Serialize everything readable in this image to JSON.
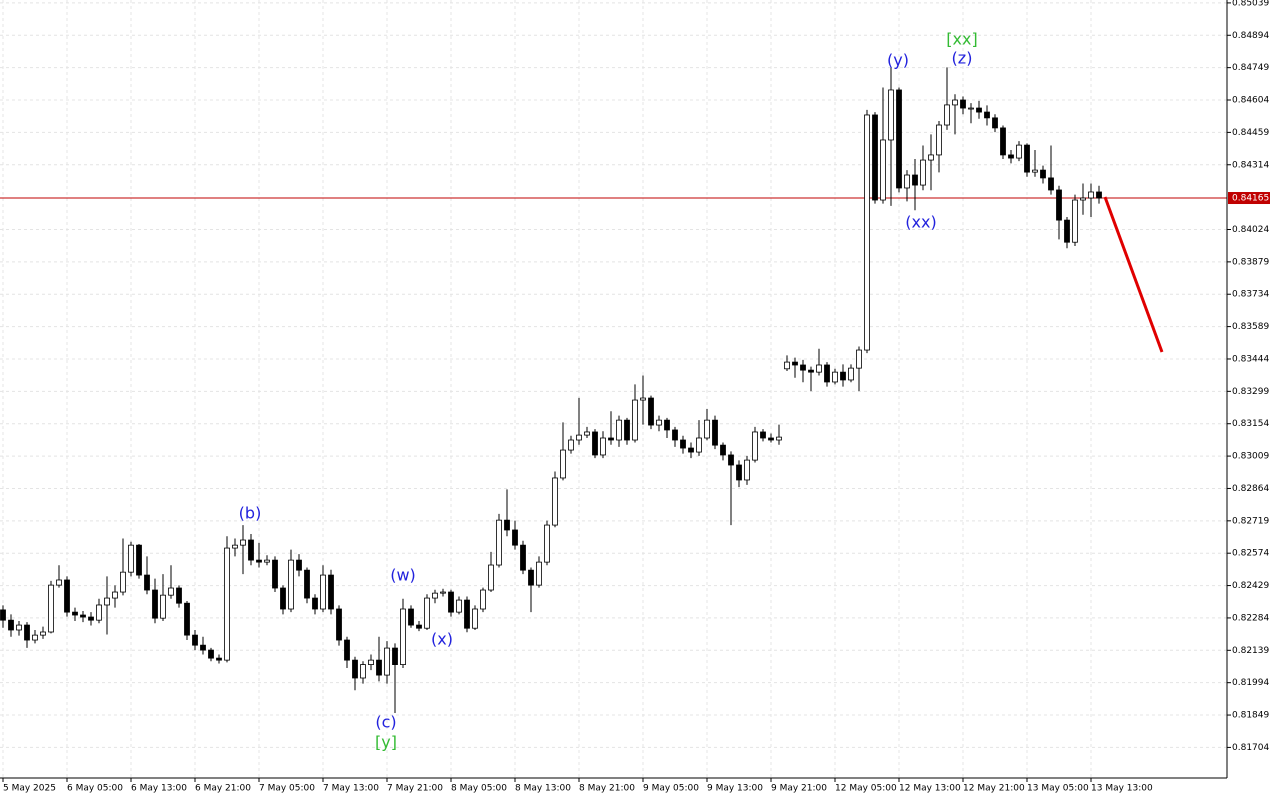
{
  "chart_data": {
    "type": "candlestick",
    "open": [
      0.8232,
      0.82274,
      0.8223,
      0.82252,
      0.82185,
      0.82207,
      0.82221,
      0.82431,
      0.82454,
      0.8231,
      0.82297,
      0.82288,
      0.82274,
      0.82342,
      0.82373,
      0.824,
      0.82489,
      0.8261,
      0.82476,
      0.82409,
      0.82283,
      0.82386,
      0.82418,
      0.8235,
      0.82207,
      0.82162,
      0.8214,
      0.82104,
      0.82095,
      0.82597,
      0.8261,
      0.82633,
      0.82543,
      0.82534,
      0.82543,
      0.82418,
      0.82324,
      0.82543,
      0.82498,
      0.82373,
      0.82324,
      0.82476,
      0.82324,
      0.82185,
      0.82095,
      0.82015,
      0.82075,
      0.82095,
      0.82028,
      0.82149,
      0.82075,
      0.82324,
      0.82252,
      0.82238,
      0.82373,
      0.82395,
      0.824,
      0.8231,
      0.82364,
      0.82238,
      0.82324,
      0.82409,
      0.82521,
      0.82722,
      0.82678,
      0.8261,
      0.82498,
      0.82431,
      0.82534,
      0.827,
      0.82911,
      0.83036,
      0.83081,
      0.83103,
      0.83117,
      0.83014,
      0.8309,
      0.83081,
      0.8317,
      0.83081,
      0.8326,
      0.83269,
      0.83148,
      0.8317,
      0.83126,
      0.83081,
      0.83045,
      0.83027,
      0.8309,
      0.8317,
      0.83058,
      0.83014,
      0.82969,
      0.82902,
      0.82991,
      0.83117,
      0.8309,
      0.83081,
      0.834,
      0.8343,
      0.83417,
      0.83394,
      0.83385,
      0.83417,
      0.83341,
      0.83385,
      0.8335,
      0.83403,
      0.83484,
      0.84537,
      0.84156,
      0.84425,
      0.84649,
      0.8421,
      0.84268,
      0.84223,
      0.84335,
      0.84358,
      0.84492,
      0.84582,
      0.84604,
      0.84568,
      0.84568,
      0.8455,
      0.84524,
      0.84479,
      0.84358,
      0.84344,
      0.84402,
      0.84281,
      0.8429,
      0.84255,
      0.84201,
      0.84066,
      0.83967,
      0.84156,
      0.84165,
      0.84192
    ],
    "high": [
      0.8234,
      0.823,
      0.8227,
      0.82265,
      0.8223,
      0.82245,
      0.8245,
      0.8252,
      0.8247,
      0.8233,
      0.82315,
      0.8231,
      0.8237,
      0.8247,
      0.8243,
      0.8264,
      0.82625,
      0.82615,
      0.8256,
      0.8246,
      0.8248,
      0.8252,
      0.8243,
      0.8236,
      0.8223,
      0.822,
      0.8215,
      0.8212,
      0.8265,
      0.8264,
      0.827,
      0.8266,
      0.8262,
      0.82565,
      0.8256,
      0.8243,
      0.8259,
      0.8257,
      0.8251,
      0.8239,
      0.8252,
      0.825,
      0.8234,
      0.822,
      0.8211,
      0.8209,
      0.8212,
      0.822,
      0.8218,
      0.8217,
      0.8237,
      0.8234,
      0.8227,
      0.8239,
      0.8241,
      0.82415,
      0.8241,
      0.8238,
      0.8238,
      0.8234,
      0.8242,
      0.8258,
      0.8275,
      0.8286,
      0.8272,
      0.8263,
      0.8251,
      0.8256,
      0.8272,
      0.8294,
      0.8316,
      0.831,
      0.8327,
      0.8314,
      0.8313,
      0.8312,
      0.8321,
      0.8319,
      0.8318,
      0.8333,
      0.8337,
      0.8328,
      0.8319,
      0.8318,
      0.8314,
      0.831,
      0.8307,
      0.8317,
      0.8322,
      0.8319,
      0.8307,
      0.8303,
      0.8299,
      0.8301,
      0.8314,
      0.8313,
      0.8311,
      0.8315,
      0.8346,
      0.8345,
      0.8344,
      0.8341,
      0.8349,
      0.8343,
      0.834,
      0.8342,
      0.8342,
      0.835,
      0.8456,
      0.8455,
      0.8466,
      0.8475,
      0.8466,
      0.8429,
      0.8434,
      0.844,
      0.8445,
      0.8451,
      0.8475,
      0.8463,
      0.8462,
      0.8459,
      0.846,
      0.8458,
      0.8454,
      0.8449,
      0.8438,
      0.8442,
      0.8441,
      0.8438,
      0.8431,
      0.844,
      0.8422,
      0.8408,
      0.8418,
      0.8423,
      0.8423,
      0.8422
    ],
    "low": [
      0.8224,
      0.822,
      0.82205,
      0.8215,
      0.8217,
      0.8219,
      0.82215,
      0.8242,
      0.8229,
      0.8227,
      0.82265,
      0.8225,
      0.8226,
      0.8221,
      0.8233,
      0.82385,
      0.8247,
      0.8246,
      0.8239,
      0.8226,
      0.8227,
      0.8237,
      0.8233,
      0.82185,
      0.8214,
      0.8212,
      0.8209,
      0.8208,
      0.82085,
      0.8256,
      0.8248,
      0.8252,
      0.8251,
      0.8252,
      0.824,
      0.823,
      0.8231,
      0.8247,
      0.8235,
      0.823,
      0.8231,
      0.823,
      0.8216,
      0.8206,
      0.8196,
      0.8199,
      0.8205,
      0.82,
      0.8199,
      0.81858,
      0.8206,
      0.8224,
      0.82225,
      0.8223,
      0.8235,
      0.8238,
      0.8229,
      0.823,
      0.8222,
      0.8223,
      0.8231,
      0.824,
      0.8251,
      0.8265,
      0.8259,
      0.8248,
      0.8231,
      0.8242,
      0.8252,
      0.8269,
      0.829,
      0.8302,
      0.8306,
      0.8309,
      0.83,
      0.83,
      0.8306,
      0.8305,
      0.8306,
      0.8307,
      0.8315,
      0.8313,
      0.8312,
      0.8309,
      0.8305,
      0.8302,
      0.83,
      0.8301,
      0.8308,
      0.8304,
      0.8299,
      0.827,
      0.8287,
      0.8288,
      0.8298,
      0.83075,
      0.8307,
      0.8306,
      0.8339,
      0.8336,
      0.8334,
      0.833,
      0.8337,
      0.8332,
      0.8333,
      0.8332,
      0.8334,
      0.833,
      0.8347,
      0.8414,
      0.8414,
      0.8413,
      0.8419,
      0.8415,
      0.8411,
      0.842,
      0.842,
      0.8428,
      0.8447,
      0.8445,
      0.8454,
      0.845,
      0.8452,
      0.8449,
      0.8446,
      0.8434,
      0.8432,
      0.8433,
      0.8426,
      0.8426,
      0.8423,
      0.8418,
      0.8398,
      0.8394,
      0.8395,
      0.8409,
      0.8408,
      0.8414
    ],
    "close": [
      0.82274,
      0.8223,
      0.82252,
      0.82185,
      0.82207,
      0.82221,
      0.82431,
      0.82454,
      0.8231,
      0.82297,
      0.82288,
      0.82274,
      0.82342,
      0.82373,
      0.824,
      0.82489,
      0.8261,
      0.82476,
      0.82409,
      0.82283,
      0.82386,
      0.82418,
      0.8235,
      0.82207,
      0.82162,
      0.8214,
      0.82104,
      0.82095,
      0.82597,
      0.8261,
      0.82633,
      0.82543,
      0.82534,
      0.82543,
      0.82418,
      0.82324,
      0.82543,
      0.82498,
      0.82373,
      0.82324,
      0.82476,
      0.82324,
      0.82185,
      0.82095,
      0.82015,
      0.82075,
      0.82095,
      0.82028,
      0.82149,
      0.82075,
      0.82324,
      0.82252,
      0.82238,
      0.82373,
      0.82395,
      0.824,
      0.8231,
      0.82364,
      0.82238,
      0.82324,
      0.82409,
      0.82521,
      0.82722,
      0.82678,
      0.8261,
      0.82498,
      0.82431,
      0.82534,
      0.827,
      0.82911,
      0.83036,
      0.83081,
      0.83103,
      0.83117,
      0.83014,
      0.8309,
      0.83081,
      0.8317,
      0.83081,
      0.8326,
      0.83269,
      0.83148,
      0.8317,
      0.83126,
      0.83081,
      0.83045,
      0.83027,
      0.8309,
      0.8317,
      0.83058,
      0.83014,
      0.82969,
      0.82902,
      0.82991,
      0.83117,
      0.8309,
      0.83081,
      0.83094,
      0.8343,
      0.83417,
      0.83394,
      0.83385,
      0.83417,
      0.83341,
      0.83385,
      0.8335,
      0.83403,
      0.83484,
      0.84537,
      0.84156,
      0.84425,
      0.84649,
      0.8421,
      0.84268,
      0.84223,
      0.84335,
      0.84358,
      0.84492,
      0.84582,
      0.84604,
      0.84568,
      0.84568,
      0.8455,
      0.84524,
      0.84479,
      0.84358,
      0.84344,
      0.84402,
      0.84281,
      0.8429,
      0.84255,
      0.84201,
      0.84066,
      0.83967,
      0.84156,
      0.84165,
      0.84192,
      0.84165
    ],
    "up_color": "#ffffff",
    "down_color": "#000000",
    "ylim": [
      0.81567,
      0.85052
    ],
    "yticks": [
      0.85039,
      0.84894,
      0.84749,
      0.84604,
      0.84459,
      0.84314,
      0.84024,
      0.83879,
      0.83734,
      0.83589,
      0.83444,
      0.83299,
      0.83154,
      0.83009,
      0.82864,
      0.82719,
      0.82574,
      0.82429,
      0.82284,
      0.82139,
      0.81994,
      0.81849,
      0.81704
    ],
    "xticks": [
      {
        "value": 0,
        "label": "5 May 2025"
      },
      {
        "value": 8,
        "label": "6 May 05:00"
      },
      {
        "value": 16,
        "label": "6 May 13:00"
      },
      {
        "value": 24,
        "label": "6 May 21:00"
      },
      {
        "value": 32,
        "label": "7 May 05:00"
      },
      {
        "value": 40,
        "label": "7 May 13:00"
      },
      {
        "value": 48,
        "label": "7 May 21:00"
      },
      {
        "value": 56,
        "label": "8 May 05:00"
      },
      {
        "value": 64,
        "label": "8 May 13:00"
      },
      {
        "value": 72,
        "label": "8 May 21:00"
      },
      {
        "value": 80,
        "label": "9 May 05:00"
      },
      {
        "value": 88,
        "label": "9 May 13:00"
      },
      {
        "value": 96,
        "label": "9 May 21:00"
      },
      {
        "value": 104,
        "label": "12 May 05:00"
      },
      {
        "value": 112,
        "label": "12 May 13:00"
      },
      {
        "value": 120,
        "label": "12 May 21:00"
      },
      {
        "value": 128,
        "label": "13 May 05:00"
      },
      {
        "value": 136,
        "label": "13 May 13:00"
      }
    ],
    "grid": true,
    "current_price": 0.84165,
    "current_price_color": "#c00000",
    "annotations": [
      {
        "text": "(b)",
        "color": "#2222dd"
      },
      {
        "text": "(w)",
        "color": "#2222dd"
      },
      {
        "text": "(x)",
        "color": "#2222dd"
      },
      {
        "text": "(c)",
        "color": "#2222dd"
      },
      {
        "text": "[y]",
        "color": "#33bb33"
      },
      {
        "text": "(y)",
        "color": "#2222dd"
      },
      {
        "text": "(xx)",
        "color": "#2222dd"
      },
      {
        "text": "(z)",
        "color": "#2222dd"
      },
      {
        "text": "[xx]",
        "color": "#33bb33"
      }
    ]
  }
}
